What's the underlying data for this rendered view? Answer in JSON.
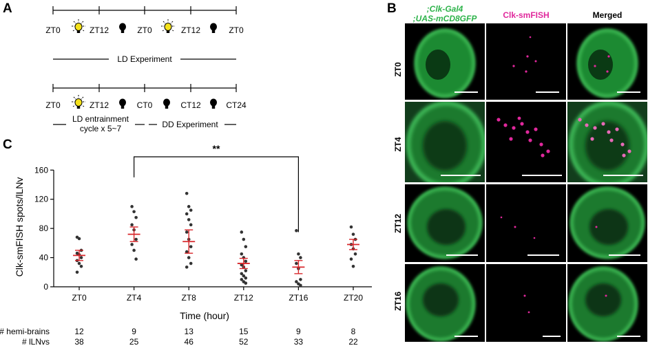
{
  "panels": {
    "A": "A",
    "B": "B",
    "C": "C"
  },
  "panelA": {
    "ld_ticks": [
      "ZT0",
      "ZT12",
      "ZT0",
      "ZT12",
      "ZT0"
    ],
    "ld_caption": "LD Experiment",
    "dd_ticks": [
      "ZT0",
      "ZT12",
      "CT0",
      "CT12",
      "CT24"
    ],
    "dd_caption_left": "LD entrainment cycle x 5~7",
    "dd_caption_left_line1": "LD entrainment",
    "dd_caption_left_line2": "cycle x 5~7",
    "dd_caption_right": "DD Experiment",
    "colors": {
      "light": "#f5e21b",
      "dark": "#000000"
    }
  },
  "panelB": {
    "col_headers": {
      "genotype_line1": ";Clk-Gal4",
      "genotype_line2": ";UAS-mCD8GFP",
      "smfish": "Clk-smFISH",
      "merged": "Merged"
    },
    "rows": [
      "ZT0",
      "ZT4",
      "ZT12",
      "ZT16"
    ],
    "colors": {
      "gfp": "#2db34a",
      "smfish": "#e0289c"
    }
  },
  "chart_data": {
    "type": "scatter",
    "xlabel": "Time (hour)",
    "ylabel": "Clk-smFISH spots/lLNv",
    "categories": [
      "ZT0",
      "ZT4",
      "ZT8",
      "ZT12",
      "ZT16",
      "ZT20"
    ],
    "yticks": [
      0,
      40,
      80,
      120,
      160
    ],
    "ylim": [
      0,
      165
    ],
    "means": [
      43,
      72,
      62,
      32,
      27,
      58
    ],
    "sems": [
      7,
      10,
      16,
      7,
      9,
      7
    ],
    "points": [
      [
        68,
        66,
        50,
        46,
        44,
        40,
        36,
        32,
        28,
        20
      ],
      [
        110,
        103,
        95,
        85,
        78,
        65,
        58,
        50,
        38
      ],
      [
        128,
        110,
        105,
        100,
        92,
        85,
        75,
        65,
        55,
        48,
        40,
        32,
        27
      ],
      [
        75,
        65,
        55,
        45,
        40,
        35,
        30,
        27,
        22,
        18,
        15,
        12,
        10,
        7,
        5
      ],
      [
        77,
        45,
        40,
        32,
        25,
        10,
        7,
        4,
        2
      ],
      [
        82,
        72,
        65,
        58,
        52,
        45,
        38,
        28
      ]
    ],
    "significance": {
      "from": "ZT4",
      "to": "ZT16",
      "label": "**"
    },
    "counts_labels": {
      "hemi": "# hemi-brains",
      "llnv": "# lLNvs"
    },
    "hemi_brains": [
      "12",
      "9",
      "13",
      "15",
      "9",
      "8"
    ],
    "llnvs": [
      "38",
      "25",
      "46",
      "52",
      "33",
      "22"
    ],
    "colors": {
      "points": "#333333",
      "mean": "#d8262a"
    }
  }
}
